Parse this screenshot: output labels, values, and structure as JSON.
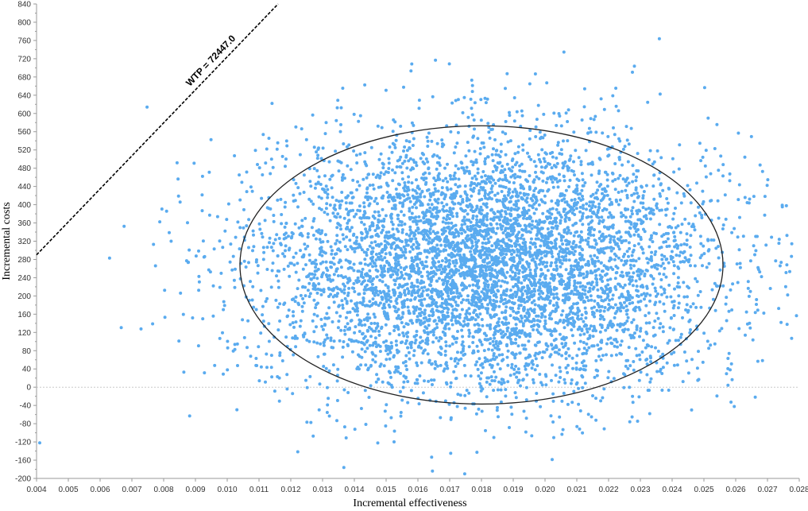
{
  "chart_data": {
    "type": "scatter",
    "xlabel": "Incremental effectiveness",
    "ylabel": "Incremental costs",
    "xlim": [
      0.004,
      0.028
    ],
    "ylim": [
      -200,
      840
    ],
    "xticks": [
      "0.004",
      "0.005",
      "0.006",
      "0.007",
      "0.008",
      "0.009",
      "0.010",
      "0.011",
      "0.012",
      "0.013",
      "0.014",
      "0.015",
      "0.016",
      "0.017",
      "0.018",
      "0.019",
      "0.020",
      "0.021",
      "0.022",
      "0.023",
      "0.024",
      "0.025",
      "0.026",
      "0.027",
      "0.028"
    ],
    "yticks": [
      "-200",
      "-180",
      "-160",
      "-140",
      "-120",
      "-100",
      "-80",
      "-60",
      "-40",
      "-20",
      "0",
      "20",
      "40",
      "60",
      "80",
      "100",
      "120",
      "140",
      "160",
      "180",
      "200",
      "220",
      "240",
      "260",
      "280",
      "300",
      "320",
      "340",
      "360",
      "380",
      "400",
      "420",
      "440",
      "460",
      "480",
      "500",
      "520",
      "540",
      "560",
      "580",
      "600",
      "620",
      "640",
      "660",
      "680",
      "700",
      "720",
      "740",
      "760",
      "780",
      "800",
      "820",
      "840"
    ],
    "grid": false,
    "point_color": "#5aabef",
    "point_count": 6000,
    "distribution": {
      "x_mean": 0.0182,
      "x_sd": 0.0036,
      "y_mean": 270,
      "y_sd": 140
    },
    "confidence_ellipse": {
      "center": [
        0.018,
        268
      ],
      "x_radius": 0.0076,
      "y_radius": 305,
      "color": "#222222"
    },
    "zero_line": {
      "y": 0,
      "color": "#c8c8c8"
    },
    "wtp_line": {
      "label": "WTP = 72447.0",
      "slope": 72447.0,
      "through": [
        0.004,
        290
      ],
      "to": [
        0.0116,
        840
      ]
    }
  }
}
